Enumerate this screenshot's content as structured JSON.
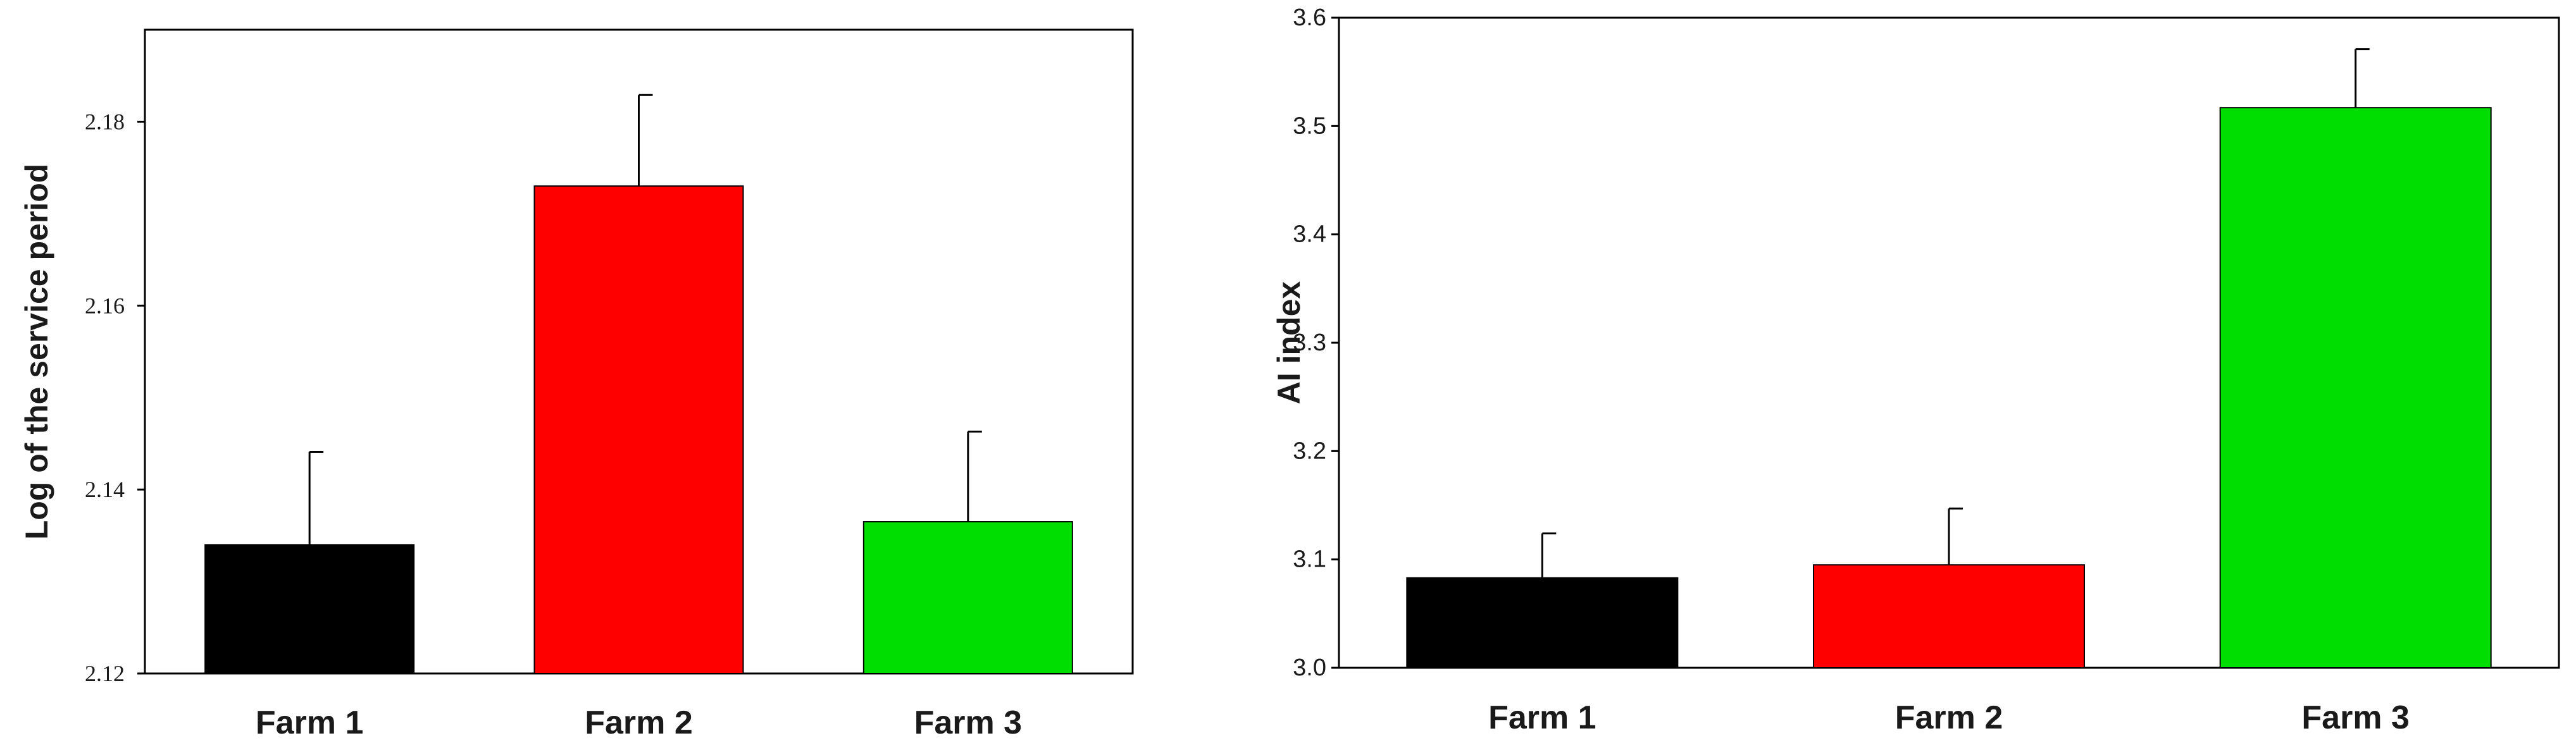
{
  "chart_data": [
    {
      "type": "bar",
      "title": "",
      "xlabel": "",
      "ylabel": "Log of the service period",
      "categories": [
        "Farm 1",
        "Farm 2",
        "Farm 3"
      ],
      "values": [
        2.134,
        2.173,
        2.1365
      ],
      "error_upper": [
        0.0101,
        0.0099,
        0.0098
      ],
      "colors": [
        "#000000",
        "#ff0000",
        "#00dd00"
      ],
      "ylim": [
        2.12,
        2.19
      ],
      "yticks": [
        2.12,
        2.14,
        2.16,
        2.18
      ],
      "ytick_labels": [
        "2.12",
        "2.14",
        "2.16",
        "2.18"
      ],
      "grid": false,
      "legend": "none"
    },
    {
      "type": "bar",
      "title": "",
      "xlabel": "",
      "ylabel": "AI index",
      "categories": [
        "Farm 1",
        "Farm 2",
        "Farm 3"
      ],
      "values": [
        3.083,
        3.095,
        3.517
      ],
      "error_upper": [
        0.041,
        0.052,
        0.054
      ],
      "colors": [
        "#000000",
        "#ff0000",
        "#00dd00"
      ],
      "ylim": [
        3.0,
        3.6
      ],
      "yticks": [
        3.0,
        3.1,
        3.2,
        3.3,
        3.4,
        3.5,
        3.6
      ],
      "ytick_labels": [
        "3.0",
        "3.1",
        "3.2",
        "3.3",
        "3.4",
        "3.5",
        "3.6"
      ],
      "grid": false,
      "legend": "none"
    }
  ]
}
